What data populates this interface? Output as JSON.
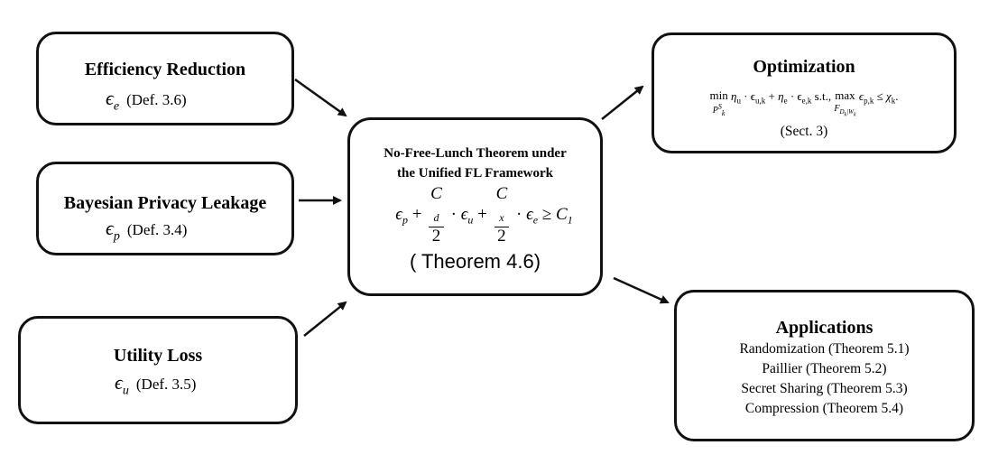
{
  "efficiency": {
    "title": "Efficiency Reduction",
    "symbol": "ϵ",
    "symbol_sub": "e",
    "ref": "(Def. 3.6)"
  },
  "privacy": {
    "title": "Bayesian Privacy Leakage",
    "symbol": "ϵ",
    "symbol_sub": "p",
    "ref": "(Def. 3.4)"
  },
  "utility": {
    "title": "Utility Loss",
    "symbol": "ϵ",
    "symbol_sub": "u",
    "ref": "(Def. 3.5)"
  },
  "center": {
    "title_line1": "No-Free-Lunch Theorem under",
    "title_line2": "the Unified FL Framework",
    "formula": {
      "eps_p": "ϵ",
      "eps_p_sub": "p",
      "plus1": "+",
      "frac1_num": "C",
      "frac1_num_sub": "d",
      "frac1_den": "2",
      "dot1": "·",
      "eps_u": "ϵ",
      "eps_u_sub": "u",
      "plus2": "+",
      "frac2_num": "C",
      "frac2_num_sub": "x",
      "frac2_den": "2",
      "dot2": "·",
      "eps_e": "ϵ",
      "eps_e_sub": "e",
      "geq": "≥",
      "c1": "C",
      "c1_sub": "1"
    },
    "theorem": "( Theorem 4.6)"
  },
  "optimization": {
    "title": "Optimization",
    "formula": {
      "min": "min",
      "min_sub": "P",
      "min_sub_sup": "S",
      "min_sub_k": "k",
      "term1": "η",
      "term1_sub": "u",
      "term1b": " · ϵ",
      "term1b_sub": "u,k",
      "plus": " + ",
      "term2": "η",
      "term2_sub": "e",
      "term2b": " · ϵ",
      "term2b_sub": "e,k",
      "st": " s.t., ",
      "max": "max",
      "max_sub": "F",
      "max_sub_sub": "D",
      "max_sub_k": "k",
      "max_sub_bar": "|W",
      "max_sub_w": "k",
      "term3": "ϵ",
      "term3_sub": "p,k",
      "leq": " ≤ ",
      "chi": "χ",
      "chi_sub": "k",
      "end": "."
    },
    "ref": "(Sect. 3)"
  },
  "applications": {
    "title": "Applications",
    "items": [
      "Randomization (Theorem 5.1)",
      "Paillier (Theorem 5.2)",
      "Secret Sharing (Theorem 5.3)",
      "Compression (Theorem 5.4)"
    ]
  }
}
